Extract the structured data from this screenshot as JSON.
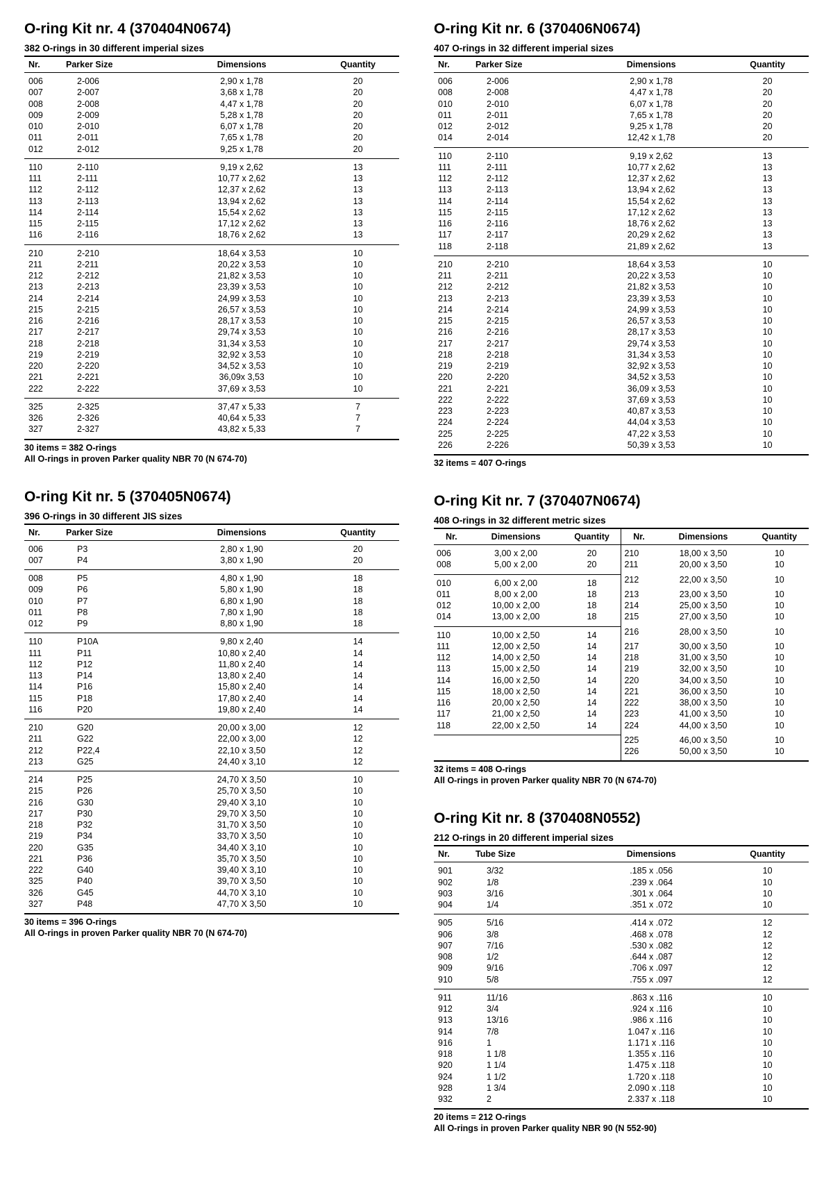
{
  "kit4": {
    "title": "O-ring Kit nr. 4 (370404N0674)",
    "sub": "382 O-rings in 30 different imperial sizes",
    "headers": [
      "Nr.",
      "Parker Size",
      "Dimensions",
      "Quantity"
    ],
    "groups": [
      [
        [
          "006",
          "2-006",
          "2,90 x 1,78",
          "20"
        ],
        [
          "007",
          "2-007",
          "3,68 x 1,78",
          "20"
        ],
        [
          "008",
          "2-008",
          "4,47 x 1,78",
          "20"
        ],
        [
          "009",
          "2-009",
          "5,28 x 1,78",
          "20"
        ],
        [
          "010",
          "2-010",
          "6,07 x 1,78",
          "20"
        ],
        [
          "011",
          "2-011",
          "7,65 x 1,78",
          "20"
        ],
        [
          "012",
          "2-012",
          "9,25 x 1,78",
          "20"
        ]
      ],
      [
        [
          "110",
          "2-110",
          "9,19 x 2,62",
          "13"
        ],
        [
          "111",
          "2-111",
          "10,77 x 2,62",
          "13"
        ],
        [
          "112",
          "2-112",
          "12,37 x 2,62",
          "13"
        ],
        [
          "113",
          "2-113",
          "13,94 x 2,62",
          "13"
        ],
        [
          "114",
          "2-114",
          "15,54 x 2,62",
          "13"
        ],
        [
          "115",
          "2-115",
          "17,12 x 2,62",
          "13"
        ],
        [
          "116",
          "2-116",
          "18,76 x 2,62",
          "13"
        ]
      ],
      [
        [
          "210",
          "2-210",
          "18,64 x 3,53",
          "10"
        ],
        [
          "211",
          "2-211",
          "20,22 x 3,53",
          "10"
        ],
        [
          "212",
          "2-212",
          "21,82 x 3,53",
          "10"
        ],
        [
          "213",
          "2-213",
          "23,39 x 3,53",
          "10"
        ],
        [
          "214",
          "2-214",
          "24,99 x 3,53",
          "10"
        ],
        [
          "215",
          "2-215",
          "26,57 x 3,53",
          "10"
        ],
        [
          "216",
          "2-216",
          "28,17 x 3,53",
          "10"
        ],
        [
          "217",
          "2-217",
          "29,74 x 3,53",
          "10"
        ],
        [
          "218",
          "2-218",
          "31,34 x 3,53",
          "10"
        ],
        [
          "219",
          "2-219",
          "32,92 x 3,53",
          "10"
        ],
        [
          "220",
          "2-220",
          "34,52 x 3,53",
          "10"
        ],
        [
          "221",
          "2-221",
          "36,09x 3,53",
          "10"
        ],
        [
          "222",
          "2-222",
          "37,69 x 3,53",
          "10"
        ]
      ],
      [
        [
          "325",
          "2-325",
          "37,47 x 5,33",
          "7"
        ],
        [
          "326",
          "2-326",
          "40,64 x 5,33",
          "7"
        ],
        [
          "327",
          "2-327",
          "43,82 x 5,33",
          "7"
        ]
      ]
    ],
    "foot1": "30 items = 382 O-rings",
    "foot2": "All O-rings in proven Parker quality NBR 70 (N 674-70)"
  },
  "kit5": {
    "title": "O-ring Kit nr. 5 (370405N0674)",
    "sub": "396 O-rings in 30 different JIS sizes",
    "headers": [
      "Nr.",
      "Parker Size",
      "Dimensions",
      "Quantity"
    ],
    "groups": [
      [
        [
          "006",
          "P3",
          "2,80 x 1,90",
          "20"
        ],
        [
          "007",
          "P4",
          "3,80 x 1,90",
          "20"
        ]
      ],
      [
        [
          "008",
          "P5",
          "4,80 x 1,90",
          "18"
        ],
        [
          "009",
          "P6",
          "5,80 x 1,90",
          "18"
        ],
        [
          "010",
          "P7",
          "6,80 x 1,90",
          "18"
        ],
        [
          "011",
          "P8",
          "7,80 x 1,90",
          "18"
        ],
        [
          "012",
          "P9",
          "8,80 x 1,90",
          "18"
        ]
      ],
      [
        [
          "110",
          "P10A",
          "9,80 x 2,40",
          "14"
        ],
        [
          "111",
          "P11",
          "10,80 x 2,40",
          "14"
        ],
        [
          "112",
          "P12",
          "11,80 x 2,40",
          "14"
        ],
        [
          "113",
          "P14",
          "13,80 x 2,40",
          "14"
        ],
        [
          "114",
          "P16",
          "15,80 x 2,40",
          "14"
        ],
        [
          "115",
          "P18",
          "17,80 x 2,40",
          "14"
        ],
        [
          "116",
          "P20",
          "19,80 x 2,40",
          "14"
        ]
      ],
      [
        [
          "210",
          "G20",
          "20,00 x 3,00",
          "12"
        ],
        [
          "211",
          "G22",
          "22,00 x 3,00",
          "12"
        ],
        [
          "212",
          "P22,4",
          "22,10 x 3,50",
          "12"
        ],
        [
          "213",
          "G25",
          "24,40 x 3,10",
          "12"
        ]
      ],
      [
        [
          "214",
          "P25",
          "24,70 X 3,50",
          "10"
        ],
        [
          "215",
          "P26",
          "25,70 X 3,50",
          "10"
        ],
        [
          "216",
          "G30",
          "29,40 X 3,10",
          "10"
        ],
        [
          "217",
          "P30",
          "29,70 X 3,50",
          "10"
        ],
        [
          "218",
          "P32",
          "31,70 X 3,50",
          "10"
        ],
        [
          "219",
          "P34",
          "33,70 X 3,50",
          "10"
        ],
        [
          "220",
          "G35",
          "34,40 X 3,10",
          "10"
        ],
        [
          "221",
          "P36",
          "35,70 X 3,50",
          "10"
        ],
        [
          "222",
          "G40",
          "39,40 X 3,10",
          "10"
        ],
        [
          "325",
          "P40",
          "39,70 X 3,50",
          "10"
        ],
        [
          "326",
          "G45",
          "44,70 X 3,10",
          "10"
        ],
        [
          "327",
          "P48",
          "47,70 X 3,50",
          "10"
        ]
      ]
    ],
    "foot1": "30 items = 396 O-rings",
    "foot2": "All O-rings in proven Parker quality NBR 70 (N 674-70)"
  },
  "kit6": {
    "title": "O-ring Kit nr. 6 (370406N0674)",
    "sub": "407 O-rings in 32 different imperial sizes",
    "headers": [
      "Nr.",
      "Parker Size",
      "Dimensions",
      "Quantity"
    ],
    "groups": [
      [
        [
          "006",
          "2-006",
          "2,90 x 1,78",
          "20"
        ],
        [
          "008",
          "2-008",
          "4,47 x 1,78",
          "20"
        ],
        [
          "010",
          "2-010",
          "6,07 x 1,78",
          "20"
        ],
        [
          "011",
          "2-011",
          "7,65 x 1,78",
          "20"
        ],
        [
          "012",
          "2-012",
          "9,25 x 1,78",
          "20"
        ],
        [
          "014",
          "2-014",
          "12,42 x 1,78",
          "20"
        ]
      ],
      [
        [
          "110",
          "2-110",
          "9,19 x 2,62",
          "13"
        ],
        [
          "111",
          "2-111",
          "10,77 x 2,62",
          "13"
        ],
        [
          "112",
          "2-112",
          "12,37 x 2,62",
          "13"
        ],
        [
          "113",
          "2-113",
          "13,94 x 2,62",
          "13"
        ],
        [
          "114",
          "2-114",
          "15,54 x 2,62",
          "13"
        ],
        [
          "115",
          "2-115",
          "17,12 x 2,62",
          "13"
        ],
        [
          "116",
          "2-116",
          "18,76 x 2,62",
          "13"
        ],
        [
          "117",
          "2-117",
          "20,29 x 2,62",
          "13"
        ],
        [
          "118",
          "2-118",
          "21,89 x 2,62",
          "13"
        ]
      ],
      [
        [
          "210",
          "2-210",
          "18,64 x 3,53",
          "10"
        ],
        [
          "211",
          "2-211",
          "20,22 x 3,53",
          "10"
        ],
        [
          "212",
          "2-212",
          "21,82 x 3,53",
          "10"
        ],
        [
          "213",
          "2-213",
          "23,39 x 3,53",
          "10"
        ],
        [
          "214",
          "2-214",
          "24,99 x 3,53",
          "10"
        ],
        [
          "215",
          "2-215",
          "26,57 x 3,53",
          "10"
        ],
        [
          "216",
          "2-216",
          "28,17 x 3,53",
          "10"
        ],
        [
          "217",
          "2-217",
          "29,74 x 3,53",
          "10"
        ],
        [
          "218",
          "2-218",
          "31,34 x 3,53",
          "10"
        ],
        [
          "219",
          "2-219",
          "32,92 x 3,53",
          "10"
        ],
        [
          "220",
          "2-220",
          "34,52 x 3,53",
          "10"
        ],
        [
          "221",
          "2-221",
          "36,09 x 3,53",
          "10"
        ],
        [
          "222",
          "2-222",
          "37,69 x 3,53",
          "10"
        ],
        [
          "223",
          "2-223",
          "40,87 x 3,53",
          "10"
        ],
        [
          "224",
          "2-224",
          "44,04 x 3,53",
          "10"
        ],
        [
          "225",
          "2-225",
          "47,22 x 3,53",
          "10"
        ],
        [
          "226",
          "2-226",
          "50,39 x 3,53",
          "10"
        ]
      ]
    ],
    "foot1": "32 items = 407 O-rings"
  },
  "kit7": {
    "title": "O-ring Kit nr. 7 (370407N0674)",
    "sub": "408 O-rings in 32 different metric sizes",
    "headers": [
      "Nr.",
      "Dimensions",
      "Quantity",
      "Nr.",
      "Dimensions",
      "Quantity"
    ],
    "left_groups": [
      [
        [
          "006",
          "3,00 x 2,00",
          "20"
        ],
        [
          "008",
          "5,00 x 2,00",
          "20"
        ]
      ],
      [
        [
          "010",
          "6,00 x 2,00",
          "18"
        ],
        [
          "011",
          "8,00 x 2,00",
          "18"
        ],
        [
          "012",
          "10,00 x 2,00",
          "18"
        ],
        [
          "014",
          "13,00 x 2,00",
          "18"
        ]
      ],
      [
        [
          "110",
          "10,00 x 2,50",
          "14"
        ],
        [
          "111",
          "12,00 x 2,50",
          "14"
        ],
        [
          "112",
          "14,00 x 2,50",
          "14"
        ],
        [
          "113",
          "15,00 x 2,50",
          "14"
        ],
        [
          "114",
          "16,00 x 2,50",
          "14"
        ],
        [
          "115",
          "18,00 x 2,50",
          "14"
        ],
        [
          "116",
          "20,00 x 2,50",
          "14"
        ],
        [
          "117",
          "21,00 x 2,50",
          "14"
        ],
        [
          "118",
          "22,00 x 2,50",
          "14"
        ]
      ]
    ],
    "right_rows": [
      [
        "210",
        "18,00 x 3,50",
        "10"
      ],
      [
        "211",
        "20,00 x 3,50",
        "10"
      ],
      [
        "212",
        "22,00 x 3,50",
        "10"
      ],
      [
        "213",
        "23,00 x 3,50",
        "10"
      ],
      [
        "214",
        "25,00 x 3,50",
        "10"
      ],
      [
        "215",
        "27,00 x 3,50",
        "10"
      ],
      [
        "216",
        "28,00 x 3,50",
        "10"
      ],
      [
        "217",
        "30,00 x 3,50",
        "10"
      ],
      [
        "218",
        "31,00 x 3,50",
        "10"
      ],
      [
        "219",
        "32,00 x 3,50",
        "10"
      ],
      [
        "220",
        "34,00 x 3,50",
        "10"
      ],
      [
        "221",
        "36,00 x 3,50",
        "10"
      ],
      [
        "222",
        "38,00 x 3,50",
        "10"
      ],
      [
        "223",
        "41,00 x 3,50",
        "10"
      ],
      [
        "224",
        "44,00 x 3,50",
        "10"
      ],
      [
        "225",
        "46,00 x 3,50",
        "10"
      ],
      [
        "226",
        "50,00 x 3,50",
        "10"
      ]
    ],
    "foot1": "32 items = 408 O-rings",
    "foot2": "All O-rings in proven Parker quality NBR 70 (N 674-70)"
  },
  "kit8": {
    "title": "O-ring Kit nr. 8 (370408N0552)",
    "sub": "212 O-rings in 20 different imperial sizes",
    "headers": [
      "Nr.",
      "Tube Size",
      "Dimensions",
      "Quantity"
    ],
    "groups": [
      [
        [
          "901",
          "3/32",
          ".185 x .056",
          "10"
        ],
        [
          "902",
          "1/8",
          ".239 x .064",
          "10"
        ],
        [
          "903",
          "3/16",
          ".301 x .064",
          "10"
        ],
        [
          "904",
          "1/4",
          ".351 x .072",
          "10"
        ]
      ],
      [
        [
          "905",
          "5/16",
          ".414 x .072",
          "12"
        ],
        [
          "906",
          "3/8",
          ".468 x .078",
          "12"
        ],
        [
          "907",
          "7/16",
          ".530 x .082",
          "12"
        ],
        [
          "908",
          "1/2",
          ".644 x .087",
          "12"
        ],
        [
          "909",
          "9/16",
          ".706 x .097",
          "12"
        ],
        [
          "910",
          "5/8",
          ".755 x .097",
          "12"
        ]
      ],
      [
        [
          "911",
          "11/16",
          ".863 x .116",
          "10"
        ],
        [
          "912",
          "3/4",
          ".924 x .116",
          "10"
        ],
        [
          "913",
          "13/16",
          ".986 x .116",
          "10"
        ],
        [
          "914",
          "7/8",
          "1.047 x .116",
          "10"
        ],
        [
          "916",
          "1",
          "1.171 x .116",
          "10"
        ],
        [
          "918",
          "1 1/8",
          "1.355 x .116",
          "10"
        ],
        [
          "920",
          "1 1/4",
          "1.475 x .118",
          "10"
        ],
        [
          "924",
          "1 1/2",
          "1.720 x .118",
          "10"
        ],
        [
          "928",
          "1 3/4",
          "2.090 x .118",
          "10"
        ],
        [
          "932",
          "2",
          "2.337 x .118",
          "10"
        ]
      ]
    ],
    "foot1": "20 items = 212 O-rings",
    "foot2": "All O-rings in proven Parker quality NBR 90 (N 552-90)"
  }
}
